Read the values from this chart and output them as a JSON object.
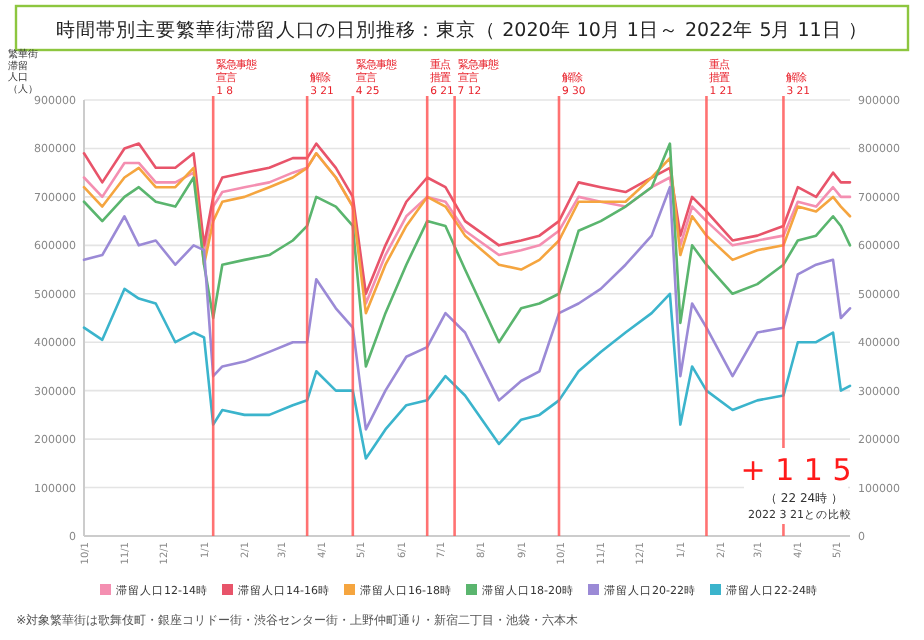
{
  "chart_data": {
    "type": "line",
    "title": "時間帯別主要繁華街滞留人口の日別推移：東京（ 2020年 10月 1日～ 2022年 5月 11日 ）",
    "ylabel": "繁華街滞留人口（人）",
    "x": [
      "2020-10-01",
      "2020-10-15",
      "2020-11-01",
      "2020-11-12",
      "2020-11-25",
      "2020-12-10",
      "2020-12-24",
      "2021-01-01",
      "2021-01-08",
      "2021-01-15",
      "2021-02-01",
      "2021-02-20",
      "2021-03-10",
      "2021-03-21",
      "2021-03-28",
      "2021-04-12",
      "2021-04-25",
      "2021-05-05",
      "2021-05-20",
      "2021-06-05",
      "2021-06-21",
      "2021-07-05",
      "2021-07-20",
      "2021-08-15",
      "2021-09-01",
      "2021-09-15",
      "2021-09-30",
      "2021-10-15",
      "2021-11-01",
      "2021-11-20",
      "2021-12-10",
      "2021-12-24",
      "2022-01-01",
      "2022-01-10",
      "2022-01-21",
      "2022-02-10",
      "2022-03-01",
      "2022-03-21",
      "2022-04-01",
      "2022-04-15",
      "2022-04-28",
      "2022-05-04",
      "2022-05-11"
    ],
    "xlim": [
      "2020-10-01",
      "2022-05-11"
    ],
    "xticks": [
      {
        "value": "2020-10-01",
        "label": "10/1"
      },
      {
        "value": "2020-11-01",
        "label": "11/1"
      },
      {
        "value": "2020-12-01",
        "label": "12/1"
      },
      {
        "value": "2021-01-01",
        "label": "1/1"
      },
      {
        "value": "2021-02-01",
        "label": "2/1"
      },
      {
        "value": "2021-03-01",
        "label": "3/1"
      },
      {
        "value": "2021-04-01",
        "label": "4/1"
      },
      {
        "value": "2021-05-01",
        "label": "5/1"
      },
      {
        "value": "2021-06-01",
        "label": "6/1"
      },
      {
        "value": "2021-07-01",
        "label": "7/1"
      },
      {
        "value": "2021-08-01",
        "label": "8/1"
      },
      {
        "value": "2021-09-01",
        "label": "9/1"
      },
      {
        "value": "2021-10-01",
        "label": "10/1"
      },
      {
        "value": "2021-11-01",
        "label": "11/1"
      },
      {
        "value": "2021-12-01",
        "label": "12/1"
      },
      {
        "value": "2022-01-01",
        "label": "1/1"
      },
      {
        "value": "2022-02-01",
        "label": "2/1"
      },
      {
        "value": "2022-03-01",
        "label": "3/1"
      },
      {
        "value": "2022-04-01",
        "label": "4/1"
      },
      {
        "value": "2022-05-01",
        "label": "5/1"
      }
    ],
    "series": [
      {
        "name": "滞留人口12-14時",
        "color": "#f48fb1",
        "values": [
          740000,
          700000,
          770000,
          770000,
          730000,
          730000,
          750000,
          580000,
          680000,
          710000,
          720000,
          730000,
          750000,
          760000,
          790000,
          740000,
          680000,
          480000,
          580000,
          660000,
          700000,
          690000,
          630000,
          580000,
          590000,
          600000,
          630000,
          700000,
          690000,
          680000,
          720000,
          740000,
          600000,
          680000,
          650000,
          600000,
          610000,
          620000,
          690000,
          680000,
          720000,
          700000,
          700000
        ]
      },
      {
        "name": "滞留人口14-16時",
        "color": "#e8546a",
        "values": [
          790000,
          730000,
          800000,
          810000,
          760000,
          760000,
          790000,
          600000,
          700000,
          740000,
          750000,
          760000,
          780000,
          780000,
          810000,
          760000,
          700000,
          500000,
          600000,
          690000,
          740000,
          720000,
          650000,
          600000,
          610000,
          620000,
          650000,
          730000,
          720000,
          710000,
          740000,
          760000,
          620000,
          700000,
          670000,
          610000,
          620000,
          640000,
          720000,
          700000,
          750000,
          730000,
          730000
        ]
      },
      {
        "name": "滞留人口16-18時",
        "color": "#f5a53f",
        "values": [
          720000,
          680000,
          740000,
          760000,
          720000,
          720000,
          760000,
          560000,
          650000,
          690000,
          700000,
          720000,
          740000,
          760000,
          790000,
          740000,
          680000,
          460000,
          560000,
          640000,
          700000,
          680000,
          620000,
          560000,
          550000,
          570000,
          610000,
          690000,
          690000,
          690000,
          740000,
          780000,
          580000,
          660000,
          620000,
          570000,
          590000,
          600000,
          680000,
          670000,
          700000,
          680000,
          660000
        ]
      },
      {
        "name": "滞留人口18-20時",
        "color": "#5ab56e",
        "values": [
          690000,
          650000,
          700000,
          720000,
          690000,
          680000,
          740000,
          560000,
          450000,
          560000,
          570000,
          580000,
          610000,
          640000,
          700000,
          680000,
          640000,
          350000,
          460000,
          560000,
          650000,
          640000,
          550000,
          400000,
          470000,
          480000,
          500000,
          630000,
          650000,
          680000,
          720000,
          810000,
          440000,
          600000,
          560000,
          500000,
          520000,
          560000,
          610000,
          620000,
          660000,
          640000,
          600000
        ]
      },
      {
        "name": "滞留人口20-22時",
        "color": "#9b8ad6",
        "values": [
          570000,
          580000,
          660000,
          600000,
          610000,
          560000,
          600000,
          590000,
          330000,
          350000,
          360000,
          380000,
          400000,
          400000,
          530000,
          470000,
          430000,
          220000,
          300000,
          370000,
          390000,
          460000,
          420000,
          280000,
          320000,
          340000,
          460000,
          480000,
          510000,
          560000,
          620000,
          720000,
          330000,
          480000,
          430000,
          330000,
          420000,
          430000,
          540000,
          560000,
          570000,
          450000,
          470000
        ]
      },
      {
        "name": "滞留人口22-24時",
        "color": "#3bb4cc",
        "values": [
          430000,
          405000,
          510000,
          490000,
          480000,
          400000,
          420000,
          410000,
          230000,
          260000,
          250000,
          250000,
          270000,
          280000,
          340000,
          300000,
          300000,
          160000,
          220000,
          270000,
          280000,
          330000,
          290000,
          190000,
          240000,
          250000,
          280000,
          340000,
          380000,
          420000,
          460000,
          500000,
          230000,
          350000,
          300000,
          260000,
          280000,
          290000,
          400000,
          400000,
          420000,
          300000,
          310000
        ]
      }
    ],
    "ylim": [
      0,
      900000
    ],
    "yticks": [
      0,
      100000,
      200000,
      300000,
      400000,
      500000,
      600000,
      700000,
      800000,
      900000
    ],
    "y2lim": [
      0,
      900000
    ],
    "y2ticks": [
      0,
      100000,
      200000,
      300000,
      400000,
      500000,
      600000,
      700000,
      800000,
      900000
    ],
    "ref_lines": [
      {
        "axis": "x",
        "value": "2021-01-08",
        "label": "緊急事態宣言1 8",
        "color": "#ff5a5a"
      },
      {
        "axis": "x",
        "value": "2021-03-21",
        "label": "解除3 21",
        "color": "#ff5a5a"
      },
      {
        "axis": "x",
        "value": "2021-04-25",
        "label": "緊急事態宣言4 25",
        "color": "#ff5a5a"
      },
      {
        "axis": "x",
        "value": "2021-06-21",
        "label": "重点措置6 21",
        "color": "#ff5a5a"
      },
      {
        "axis": "x",
        "value": "2021-07-12",
        "label": "緊急事態宣言7 12",
        "color": "#ff5a5a"
      },
      {
        "axis": "x",
        "value": "2021-09-30",
        "label": "解除9 30",
        "color": "#ff5a5a"
      },
      {
        "axis": "x",
        "value": "2022-01-21",
        "label": "重点措置1 21",
        "color": "#ff5a5a"
      },
      {
        "axis": "x",
        "value": "2022-03-21",
        "label": "解除3 21",
        "color": "#ff5a5a"
      }
    ],
    "annotations": [
      "+ 1 1 5",
      "（ 22 24時 ）",
      "2022 3 21との比較",
      "※対象繁華街は歌舞伎町・銀座コリドー街・渋谷センター街・上野仲町通り・新宿二丁目・池袋・六本木"
    ],
    "grid": "y",
    "legend": "bottom",
    "marker": "none",
    "line_style": "solid"
  }
}
